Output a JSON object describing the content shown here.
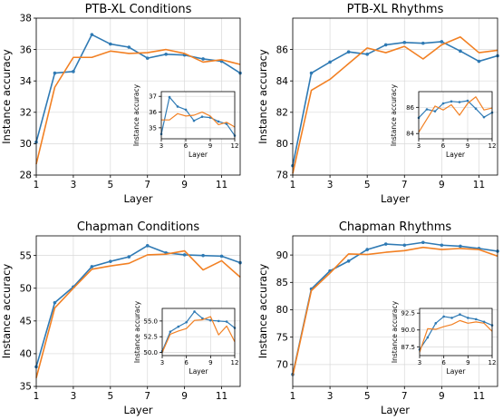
{
  "colors": {
    "blue": "#2f7ab4",
    "orange": "#f28023"
  },
  "chart_data": [
    {
      "type": "line",
      "title": "PTB-XL Conditions",
      "xlabel": "Layer",
      "ylabel": "Instance accuracy",
      "xlim": [
        1,
        12
      ],
      "ylim": [
        28,
        38
      ],
      "xticks": [
        1,
        3,
        5,
        7,
        9,
        11
      ],
      "yticks": [
        28,
        30,
        32,
        34,
        36,
        38
      ],
      "grid": true,
      "x": [
        1,
        2,
        3,
        4,
        5,
        6,
        7,
        8,
        9,
        10,
        11,
        12
      ],
      "series": [
        {
          "color": "#2f7ab4",
          "values": [
            30.1,
            34.5,
            34.6,
            36.95,
            36.35,
            36.15,
            35.45,
            35.7,
            35.65,
            35.4,
            35.25,
            34.5
          ]
        },
        {
          "color": "#f28023",
          "values": [
            28.7,
            33.6,
            35.5,
            35.5,
            35.9,
            35.75,
            35.8,
            36.0,
            35.75,
            35.2,
            35.35,
            35.05
          ]
        }
      ],
      "inset": {
        "ylabel": "Instance accuracy",
        "xlabel": "Layer",
        "xlim": [
          3,
          12
        ],
        "ylim": [
          34.3,
          37.3
        ],
        "xticks": [
          3,
          6,
          9,
          12
        ],
        "yticks": [
          35,
          36,
          37
        ]
      }
    },
    {
      "type": "line",
      "title": "PTB-XL Rhythms",
      "xlabel": "Layer",
      "ylabel": "Instance accuracy",
      "xlim": [
        1,
        12
      ],
      "ylim": [
        78,
        88
      ],
      "xticks": [
        1,
        3,
        5,
        7,
        9,
        11
      ],
      "yticks": [
        78,
        80,
        82,
        84,
        86
      ],
      "grid": true,
      "x": [
        1,
        2,
        3,
        4,
        5,
        6,
        7,
        8,
        9,
        10,
        11,
        12
      ],
      "series": [
        {
          "color": "#2f7ab4",
          "values": [
            78.6,
            84.5,
            85.2,
            85.85,
            85.7,
            86.3,
            86.45,
            86.4,
            86.5,
            85.9,
            85.25,
            85.6
          ]
        },
        {
          "color": "#f28023",
          "values": [
            78.1,
            83.4,
            84.1,
            85.1,
            86.1,
            85.8,
            86.2,
            85.4,
            86.3,
            86.8,
            85.8,
            85.95
          ]
        }
      ],
      "inset": {
        "ylabel": "Instance accuracy",
        "xlabel": "Layer",
        "xlim": [
          3,
          12
        ],
        "ylim": [
          83.6,
          87.2
        ],
        "xticks": [
          3,
          6,
          9,
          12
        ],
        "yticks": [
          84,
          86
        ]
      }
    },
    {
      "type": "line",
      "title": "Chapman Conditions",
      "xlabel": "Layer",
      "ylabel": "Instance accuracy",
      "xlim": [
        1,
        12
      ],
      "ylim": [
        35,
        58
      ],
      "xticks": [
        1,
        3,
        5,
        7,
        9,
        11
      ],
      "yticks": [
        35,
        40,
        45,
        50,
        55
      ],
      "grid": true,
      "x": [
        1,
        2,
        3,
        4,
        5,
        6,
        7,
        8,
        9,
        10,
        11,
        12
      ],
      "series": [
        {
          "color": "#2f7ab4",
          "values": [
            38.0,
            47.8,
            50.2,
            53.3,
            54.1,
            54.8,
            56.5,
            55.4,
            55.1,
            55.0,
            54.9,
            53.9
          ]
        },
        {
          "color": "#f28023",
          "values": [
            36.3,
            47.0,
            50.0,
            52.9,
            53.4,
            53.8,
            55.1,
            55.2,
            55.7,
            52.8,
            54.2,
            51.7
          ]
        }
      ],
      "inset": {
        "ylabel": "Instance accuracy",
        "xlabel": "Layer",
        "xlim": [
          3,
          12
        ],
        "ylim": [
          49.5,
          57.0
        ],
        "xticks": [
          3,
          6,
          9,
          12
        ],
        "yticks": [
          50.0,
          52.5,
          55.0
        ],
        "ytick_labels": [
          "50.0",
          "52.5",
          "55.0"
        ]
      }
    },
    {
      "type": "line",
      "title": "Chapman Rhythms",
      "xlabel": "Layer",
      "ylabel": "Instance accuracy",
      "xlim": [
        1,
        12
      ],
      "ylim": [
        66,
        93.5
      ],
      "xticks": [
        1,
        3,
        5,
        7,
        9,
        11
      ],
      "yticks": [
        70,
        75,
        80,
        85,
        90
      ],
      "grid": true,
      "x": [
        1,
        2,
        3,
        4,
        5,
        6,
        7,
        8,
        9,
        10,
        11,
        12
      ],
      "series": [
        {
          "color": "#2f7ab4",
          "values": [
            68.2,
            83.8,
            87.1,
            88.9,
            91.0,
            92.0,
            91.8,
            92.3,
            91.8,
            91.6,
            91.2,
            90.7
          ]
        },
        {
          "color": "#f28023",
          "values": [
            68.0,
            83.5,
            86.7,
            90.2,
            90.1,
            90.5,
            90.8,
            91.4,
            91.0,
            91.2,
            91.0,
            89.8
          ]
        }
      ],
      "inset": {
        "ylabel": "Instance accuracy",
        "xlabel": "Layer",
        "xlim": [
          3,
          12
        ],
        "ylim": [
          86.2,
          93.2
        ],
        "xticks": [
          3,
          6,
          9,
          12
        ],
        "yticks": [
          87.5,
          90.0,
          92.5
        ],
        "ytick_labels": [
          "87.5",
          "90.0",
          "92.5"
        ]
      }
    }
  ]
}
